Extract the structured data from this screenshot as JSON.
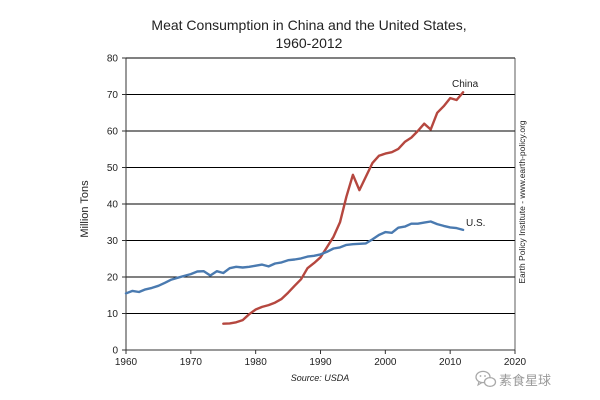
{
  "chart_data": {
    "type": "line",
    "title_lines": [
      "Meat Consumption in China and the United States,",
      "1960-2012"
    ],
    "xlabel": "",
    "ylabel": "Million Tons",
    "xlim": [
      1960,
      2020
    ],
    "ylim": [
      0,
      80
    ],
    "x_ticks": [
      1960,
      1970,
      1980,
      1990,
      2000,
      2010,
      2020
    ],
    "y_ticks": [
      0,
      10,
      20,
      30,
      40,
      50,
      60,
      70,
      80
    ],
    "grid": "horizontal",
    "legend": "inline labels at line ends",
    "source": "Source: USDA",
    "credit": "Earth Policy Institute - www.earth-policy.org",
    "series": [
      {
        "name": "China",
        "color": "#b5473f",
        "x": [
          1975,
          1976,
          1977,
          1978,
          1979,
          1980,
          1981,
          1982,
          1983,
          1984,
          1985,
          1986,
          1987,
          1988,
          1989,
          1990,
          1991,
          1992,
          1993,
          1994,
          1995,
          1996,
          1997,
          1998,
          1999,
          2000,
          2001,
          2002,
          2003,
          2004,
          2005,
          2006,
          2007,
          2008,
          2009,
          2010,
          2011,
          2012
        ],
        "values": [
          7.2,
          7.3,
          7.6,
          8.2,
          9.8,
          11.1,
          11.8,
          12.3,
          13.0,
          14.0,
          15.7,
          17.6,
          19.4,
          22.4,
          23.8,
          25.4,
          28.2,
          31.0,
          35.0,
          42.0,
          48.0,
          43.8,
          47.5,
          51.2,
          53.2,
          53.8,
          54.2,
          55.1,
          57.0,
          58.2,
          60.0,
          62.0,
          60.4,
          65.0,
          66.8,
          69.0,
          68.5,
          70.6
        ]
      },
      {
        "name": "U.S.",
        "color": "#4a7ab0",
        "x": [
          1960,
          1961,
          1962,
          1963,
          1964,
          1965,
          1966,
          1967,
          1968,
          1969,
          1970,
          1971,
          1972,
          1973,
          1974,
          1975,
          1976,
          1977,
          1978,
          1979,
          1980,
          1981,
          1982,
          1983,
          1984,
          1985,
          1986,
          1987,
          1988,
          1989,
          1990,
          1991,
          1992,
          1993,
          1994,
          1995,
          1996,
          1997,
          1998,
          1999,
          2000,
          2001,
          2002,
          2003,
          2004,
          2005,
          2006,
          2007,
          2008,
          2009,
          2010,
          2011,
          2012
        ],
        "values": [
          15.5,
          16.2,
          15.9,
          16.6,
          17.0,
          17.6,
          18.4,
          19.3,
          19.8,
          20.3,
          20.8,
          21.5,
          21.6,
          20.4,
          21.6,
          21.1,
          22.4,
          22.8,
          22.6,
          22.8,
          23.1,
          23.4,
          22.9,
          23.7,
          24.0,
          24.6,
          24.8,
          25.1,
          25.6,
          25.8,
          26.2,
          26.9,
          27.8,
          28.1,
          28.8,
          29.0,
          29.1,
          29.2,
          30.3,
          31.5,
          32.3,
          32.1,
          33.5,
          33.8,
          34.6,
          34.6,
          34.9,
          35.2,
          34.5,
          34.0,
          33.6,
          33.4,
          32.9
        ]
      }
    ]
  },
  "watermark": {
    "text": "素食星球",
    "icon": "wechat-logo-icon"
  }
}
